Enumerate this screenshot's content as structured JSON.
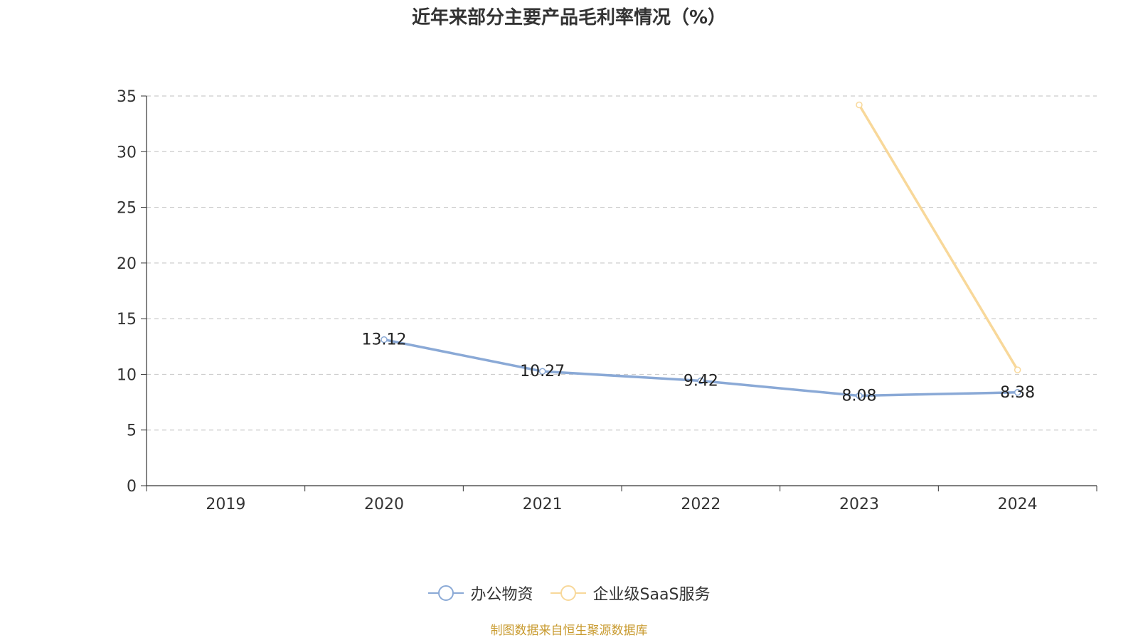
{
  "chart_data": {
    "type": "line",
    "title": "近年来部分主要产品毛利率情况（%）",
    "xlabel": "",
    "ylabel": "",
    "categories": [
      "2019",
      "2020",
      "2021",
      "2022",
      "2023",
      "2024"
    ],
    "ylim": [
      0,
      35
    ],
    "yticks": [
      "0",
      "5",
      "10",
      "15",
      "20",
      "25",
      "30",
      "35"
    ],
    "grid": true,
    "legend_position": "bottom",
    "series": [
      {
        "name": "办公物资",
        "color": "#8aa9d6",
        "values": [
          null,
          13.12,
          10.27,
          9.42,
          8.08,
          8.38
        ],
        "labels": [
          "",
          "13.12",
          "10.27",
          "9.42",
          "8.08",
          "8.38"
        ]
      },
      {
        "name": "企业级SaaS服务",
        "color": "#f8d89a",
        "values": [
          null,
          null,
          null,
          null,
          34.2,
          10.4
        ],
        "labels": [
          "",
          "",
          "",
          "",
          "",
          ""
        ]
      }
    ]
  },
  "footer": "制图数据来自恒生聚源数据库"
}
